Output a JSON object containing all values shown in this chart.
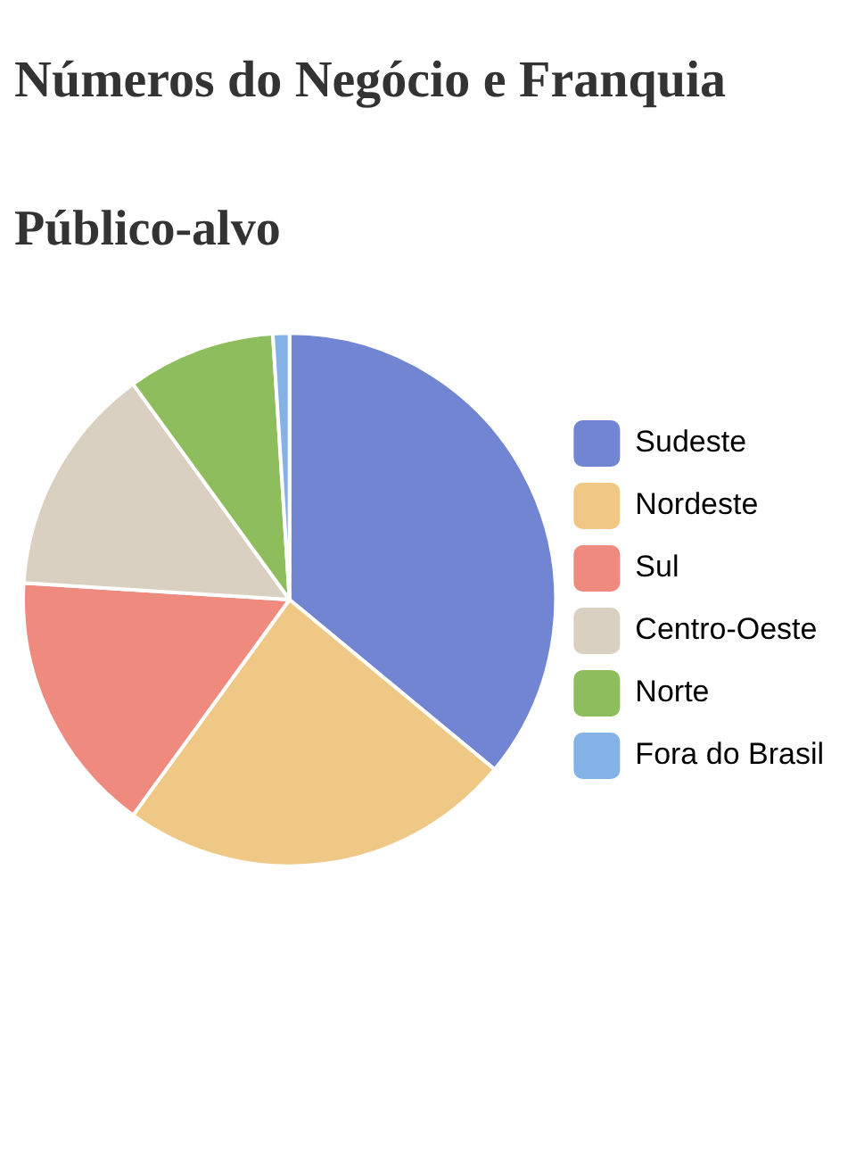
{
  "chart_data": {
    "type": "pie",
    "title": "Números do Negócio e Franquia",
    "subtitle": "Público-alvo",
    "categories": [
      "Sudeste",
      "Nordeste",
      "Sul",
      "Centro-Oeste",
      "Norte",
      "Fora do Brasil"
    ],
    "values": [
      36,
      24,
      16,
      14,
      9,
      1
    ],
    "colors": [
      "#7185d2",
      "#f0c886",
      "#ef8a7f",
      "#d9d0c1",
      "#8dbd5d",
      "#85b2e6"
    ],
    "legend": "right"
  }
}
